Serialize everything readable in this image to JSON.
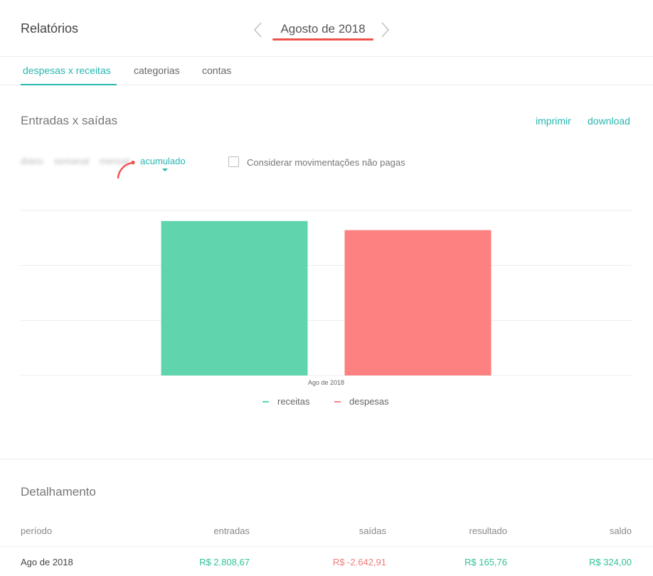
{
  "header": {
    "title": "Relatórios",
    "month": "Agosto de 2018"
  },
  "tabs": [
    {
      "label": "despesas x receitas",
      "active": true
    },
    {
      "label": "categorias",
      "active": false
    },
    {
      "label": "contas",
      "active": false
    }
  ],
  "section": {
    "title": "Entradas x saídas",
    "print_label": "imprimir",
    "download_label": "download"
  },
  "period_options": {
    "daily": "diário",
    "weekly": "semanal",
    "monthly": "mensal",
    "cumulative": "acumulado",
    "selected": "acumulado"
  },
  "unpaid_checkbox": {
    "label": "Considerar movimentações não pagas",
    "checked": false
  },
  "colors": {
    "accent": "#26b6b1",
    "income": "#5fd4ad",
    "expense": "#fe8181",
    "annotation": "#f0504a"
  },
  "chart_data": {
    "type": "bar",
    "categories": [
      "Ago de 2018"
    ],
    "series": [
      {
        "name": "receitas",
        "values": [
          2808.67
        ],
        "color": "#5fd4ad"
      },
      {
        "name": "despesas",
        "values": [
          2642.91
        ],
        "color": "#fe8181"
      }
    ],
    "ylim": [
      0,
      3000
    ],
    "gridlines": [
      0,
      1000,
      2000,
      3000
    ],
    "grid": true,
    "legend": "bottom"
  },
  "details": {
    "title": "Detalhamento",
    "columns": [
      "período",
      "entradas",
      "saídas",
      "resultado",
      "saldo"
    ],
    "rows": [
      {
        "period": "Ago de 2018",
        "income": "R$ 2.808,67",
        "expenses": "R$ -2.642,91",
        "result": "R$ 165,76",
        "balance": "R$ 324,00"
      }
    ]
  }
}
